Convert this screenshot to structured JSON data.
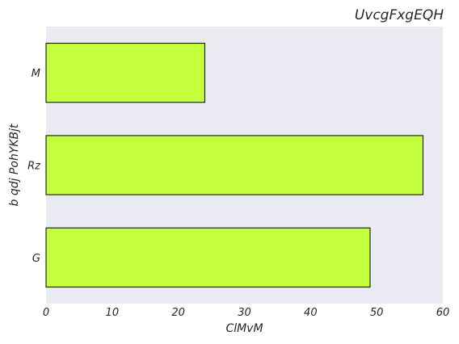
{
  "chart_data": {
    "type": "bar",
    "orientation": "horizontal",
    "title": "UvcgFxgEQH",
    "xlabel": "ClMvM",
    "ylabel": "b qdj PohYKBjt",
    "categories": [
      "M",
      "Rz",
      "G"
    ],
    "values": [
      24,
      57,
      49
    ],
    "xlim": [
      0,
      60
    ],
    "xticks": [
      0,
      10,
      20,
      30,
      40,
      50,
      60
    ],
    "grid": false,
    "colors": {
      "bar": "#c3ff3c",
      "plot_background": "#eaeaf2",
      "bar_edge": "#000000"
    }
  }
}
